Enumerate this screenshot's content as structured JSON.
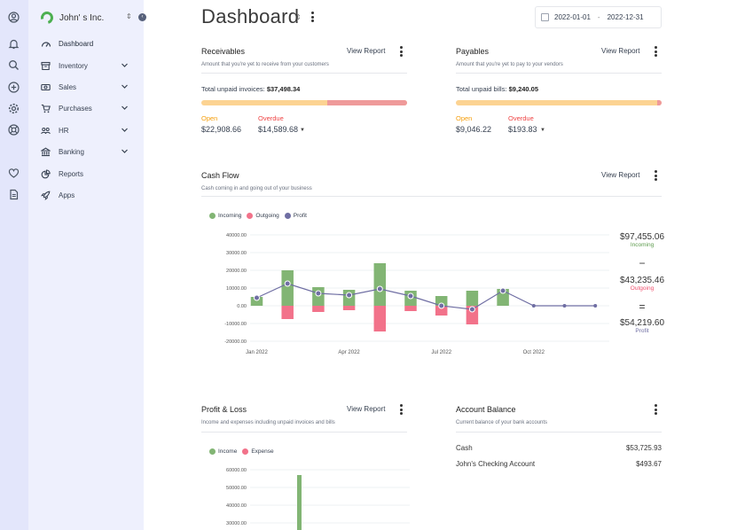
{
  "company": {
    "name": "John' s Inc."
  },
  "rail_icons": [
    "user-circle-icon",
    "bell-icon",
    "search-icon",
    "plus-circle-icon",
    "gear-icon",
    "life-ring-icon",
    "heart-icon",
    "document-icon"
  ],
  "sidebar": {
    "items": [
      {
        "label": "Dashboard",
        "icon": "speedometer-icon",
        "chevron": false
      },
      {
        "label": "Inventory",
        "icon": "archive-icon",
        "chevron": true
      },
      {
        "label": "Sales",
        "icon": "money-icon",
        "chevron": true
      },
      {
        "label": "Purchases",
        "icon": "cart-icon",
        "chevron": true
      },
      {
        "label": "HR",
        "icon": "people-icon",
        "chevron": true
      },
      {
        "label": "Banking",
        "icon": "bank-icon",
        "chevron": true
      },
      {
        "label": "Reports",
        "icon": "pie-chart-icon",
        "chevron": false
      },
      {
        "label": "Apps",
        "icon": "rocket-icon",
        "chevron": false
      }
    ]
  },
  "header": {
    "title": "Dashboard",
    "date_start": "2022-01-01",
    "date_end": "2022-12-31",
    "date_sep": "-"
  },
  "receivables": {
    "title": "Receivables",
    "view_report": "View Report",
    "subtitle": "Amount that you're yet to receive from your customers",
    "total_label": "Total unpaid invoices:",
    "total_value": "$37,498.34",
    "open_label": "Open",
    "open_value": "$22,908.66",
    "overdue_label": "Overdue",
    "overdue_value": "$14,589.68",
    "open_fraction": 0.611
  },
  "payables": {
    "title": "Payables",
    "view_report": "View Report",
    "subtitle": "Amount that you're yet to pay to your vendors",
    "total_label": "Total unpaid bills:",
    "total_value": "$9,240.05",
    "open_label": "Open",
    "open_value": "$9,046.22",
    "overdue_label": "Overdue",
    "overdue_value": "$193.83",
    "open_fraction": 0.979
  },
  "cashflow": {
    "title": "Cash Flow",
    "view_report": "View Report",
    "subtitle": "Cash coming in and going out of your business",
    "incoming_total": "$97,455.06",
    "incoming_label": "Incoming",
    "outgoing_total": "$43,235.46",
    "outgoing_label": "Outgoing",
    "profit_total": "$54,219.60",
    "profit_label": "Profit",
    "op_minus": "−",
    "op_equals": "="
  },
  "profit_loss": {
    "title": "Profit & Loss",
    "view_report": "View Report",
    "subtitle": "Income and expenses including unpaid invoices and bills"
  },
  "account_balance": {
    "title": "Account Balance",
    "subtitle": "Current balance of your bank accounts",
    "accounts": [
      {
        "name": "Cash",
        "balance": "$53,725.93"
      },
      {
        "name": "John's Checking Account",
        "balance": "$493.67"
      }
    ]
  },
  "colors": {
    "incoming": "#82b574",
    "outgoing": "#f2728a",
    "profit": "#6f6ea3",
    "open": "#f59e0b",
    "overdue": "#ef4444",
    "accent": "#4caf50"
  },
  "chart_data": [
    {
      "type": "bar",
      "title": "Cash Flow",
      "legend": [
        "Incoming",
        "Outgoing",
        "Profit"
      ],
      "legend_position": "top-left",
      "x": [
        "Jan 2022",
        "Feb 2022",
        "Mar 2022",
        "Apr 2022",
        "May 2022",
        "Jun 2022",
        "Jul 2022",
        "Aug 2022",
        "Sep 2022",
        "Oct 2022",
        "Nov 2022",
        "Dec 2022"
      ],
      "xticks": [
        "Jan 2022",
        "Apr 2022",
        "Jul 2022",
        "Oct 2022"
      ],
      "yticks": [
        "40000.00",
        "30000.00",
        "20000.00",
        "10000.00",
        "0.00",
        "-10000.00",
        "-20000.00"
      ],
      "ylim": [
        -20000,
        40000
      ],
      "series": [
        {
          "name": "Incoming",
          "type": "bar",
          "values": [
            5000,
            20000,
            10500,
            9000,
            24000,
            8500,
            5500,
            8500,
            9500,
            0,
            0,
            0
          ]
        },
        {
          "name": "Outgoing",
          "type": "bar",
          "values": [
            0,
            -7500,
            -3500,
            -2500,
            -14500,
            -3000,
            -5500,
            -10500,
            0,
            0,
            0,
            0
          ]
        },
        {
          "name": "Profit",
          "type": "line",
          "values": [
            4500,
            12500,
            7000,
            6000,
            9500,
            5500,
            0,
            -2000,
            8500,
            0,
            0,
            0
          ]
        }
      ],
      "grid": true
    },
    {
      "type": "bar",
      "title": "Profit & Loss",
      "legend": [
        "Income",
        "Expense"
      ],
      "legend_position": "top-left",
      "yticks": [
        "60000.00",
        "50000.00",
        "40000.00",
        "30000.00"
      ],
      "series": [
        {
          "name": "Income",
          "values": [
            57000
          ]
        }
      ],
      "grid": true
    }
  ]
}
